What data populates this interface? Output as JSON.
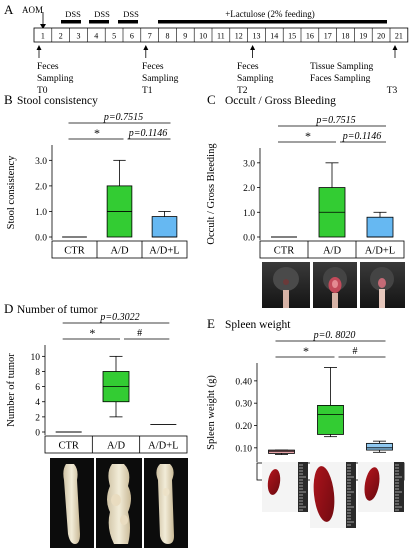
{
  "panel_a": {
    "letter": "A",
    "aom": "AOM",
    "dss": [
      "DSS",
      "DSS",
      "DSS"
    ],
    "lactulose": "+Lactulose (2% feeding)",
    "days": [
      "1",
      "2",
      "3",
      "4",
      "5",
      "6",
      "7",
      "8",
      "9",
      "10",
      "11",
      "12",
      "13",
      "14",
      "15",
      "16",
      "17",
      "18",
      "19",
      "20",
      "21"
    ],
    "sampling": [
      {
        "lines": [
          "Feces",
          "Sampling",
          "T0"
        ]
      },
      {
        "lines": [
          "Feces",
          "Sampling",
          "T1"
        ]
      },
      {
        "lines": [
          "Feces",
          "Sampling",
          "T2"
        ]
      },
      {
        "lines": [
          "Tissue Sampling",
          "Faces Sampling",
          "T3"
        ]
      }
    ]
  },
  "chart_data": [
    {
      "panel": "B",
      "type": "box",
      "title": "Stool consistency",
      "ylabel": "Stool consistency",
      "categories": [
        "CTR",
        "A/D",
        "A/D+L"
      ],
      "ylim": [
        0,
        3.6
      ],
      "yticks": [
        "0.0",
        "1.0",
        "2.0",
        "3.0"
      ],
      "ytick_values": [
        0,
        1,
        2,
        3
      ],
      "boxes": [
        {
          "min": 0,
          "q1": 0,
          "median": 0,
          "q3": 0,
          "max": 0,
          "color": "#ffffff"
        },
        {
          "min": 0,
          "q1": 0,
          "median": 1,
          "q3": 2,
          "max": 3,
          "color": "#33cc33"
        },
        {
          "min": 0,
          "q1": 0,
          "median": 0,
          "q3": 0.8,
          "max": 1,
          "color": "#66b8f2"
        }
      ],
      "annotations": {
        "overall": "p=0.7515",
        "star": "*",
        "pair": "p=0.1146"
      }
    },
    {
      "panel": "C",
      "type": "box",
      "title": "Occult / Gross Bleeding",
      "ylabel": "Occult / Gross Bleeding",
      "categories": [
        "CTR",
        "A/D",
        "A/D+L"
      ],
      "ylim": [
        0,
        3.6
      ],
      "yticks": [
        "0.0",
        "1.0",
        "2.0",
        "3.0"
      ],
      "ytick_values": [
        0,
        1,
        2,
        3
      ],
      "boxes": [
        {
          "min": 0,
          "q1": 0,
          "median": 0,
          "q3": 0,
          "max": 0,
          "color": "#ffffff"
        },
        {
          "min": 0,
          "q1": 0,
          "median": 1,
          "q3": 2,
          "max": 3,
          "color": "#33cc33"
        },
        {
          "min": 0,
          "q1": 0,
          "median": 0,
          "q3": 0.8,
          "max": 1,
          "color": "#66b8f2"
        }
      ],
      "annotations": {
        "overall": "p=0.7515",
        "star": "*",
        "pair": "p=0.1146"
      }
    },
    {
      "panel": "D",
      "type": "box",
      "title": "Number of tumor",
      "ylabel": "Number of tumor",
      "categories": [
        "CTR",
        "A/D",
        "A/D+L"
      ],
      "ylim": [
        0,
        11.5
      ],
      "yticks": [
        "0",
        "2",
        "4",
        "6",
        "8",
        "10"
      ],
      "ytick_values": [
        0,
        2,
        4,
        6,
        8,
        10
      ],
      "boxes": [
        {
          "min": 0,
          "q1": 0,
          "median": 0,
          "q3": 0,
          "max": 0,
          "color": "#ffffff"
        },
        {
          "min": 2,
          "q1": 4,
          "median": 6,
          "q3": 8,
          "max": 10,
          "color": "#33cc33"
        },
        {
          "min": 1,
          "q1": 1,
          "median": 1,
          "q3": 1,
          "max": 1,
          "color": "#ffffff"
        }
      ],
      "annotations": {
        "overall": "p=0.3022",
        "star": "*",
        "pair": "#"
      }
    },
    {
      "panel": "E",
      "type": "box",
      "title": "Spleen weight",
      "ylabel": "Spleen weight  (g)",
      "categories": [
        "CTR",
        "A/D",
        "A/D+L"
      ],
      "ylim": [
        0.05,
        0.48
      ],
      "yticks": [
        "0.10",
        "0.20",
        "0.30",
        "0.40"
      ],
      "ytick_values": [
        0.1,
        0.2,
        0.3,
        0.4
      ],
      "boxes": [
        {
          "min": 0.07,
          "q1": 0.075,
          "median": 0.085,
          "q3": 0.09,
          "max": 0.09,
          "color": "#e8a3a8"
        },
        {
          "min": 0.15,
          "q1": 0.16,
          "median": 0.25,
          "q3": 0.29,
          "max": 0.46,
          "color": "#33cc33"
        },
        {
          "min": 0.08,
          "q1": 0.09,
          "median": 0.1,
          "q3": 0.12,
          "max": 0.13,
          "color": "#8fc8f0"
        }
      ],
      "annotations": {
        "overall": "p=0. 8020",
        "star": "*",
        "pair": "#"
      }
    }
  ]
}
